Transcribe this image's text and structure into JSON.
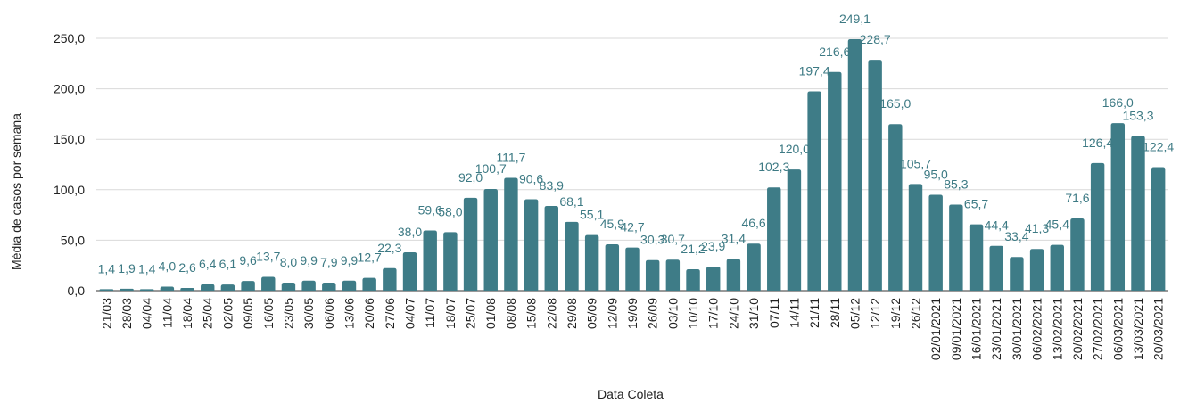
{
  "chart_data": {
    "type": "bar",
    "title": "",
    "xlabel": "Data Coleta",
    "ylabel": "Média de casos por semana",
    "ylim": [
      0,
      250
    ],
    "yticks": [
      "0,0",
      "50,0",
      "100,0",
      "150,0",
      "200,0",
      "250,0"
    ],
    "ytick_values": [
      0,
      50,
      100,
      150,
      200,
      250
    ],
    "grid": true,
    "legend": "none",
    "bar_color": "#3e7c87",
    "categories": [
      "21/03",
      "28/03",
      "04/04",
      "11/04",
      "18/04",
      "25/04",
      "02/05",
      "09/05",
      "16/05",
      "23/05",
      "30/05",
      "06/06",
      "13/06",
      "20/06",
      "27/06",
      "04/07",
      "11/07",
      "18/07",
      "25/07",
      "01/08",
      "08/08",
      "15/08",
      "22/08",
      "29/08",
      "05/09",
      "12/09",
      "19/09",
      "26/09",
      "03/10",
      "10/10",
      "17/10",
      "24/10",
      "31/10",
      "07/11",
      "14/11",
      "21/11",
      "28/11",
      "05/12",
      "12/12",
      "19/12",
      "26/12",
      "02/01/2021",
      "09/01/2021",
      "16/01/2021",
      "23/01/2021",
      "30/01/2021",
      "06/02/2021",
      "13/02/2021",
      "20/02/2021",
      "27/02/2021",
      "06/03/2021",
      "13/03/2021",
      "20/03/2021"
    ],
    "values": [
      1.4,
      1.9,
      1.4,
      4.0,
      2.6,
      6.4,
      6.1,
      9.6,
      13.7,
      8.0,
      9.9,
      7.9,
      9.9,
      12.7,
      22.3,
      38.0,
      59.6,
      58.0,
      92.0,
      100.7,
      111.7,
      90.6,
      83.9,
      68.1,
      55.1,
      45.9,
      42.7,
      30.3,
      30.7,
      21.2,
      23.9,
      31.4,
      46.6,
      102.3,
      120.0,
      197.4,
      216.6,
      249.1,
      228.7,
      165.0,
      105.7,
      95.0,
      85.3,
      65.7,
      44.4,
      33.4,
      41.3,
      45.4,
      71.6,
      126.4,
      166.0,
      153.3,
      122.4
    ],
    "value_labels": [
      "1,4",
      "1,9",
      "1,4",
      "4,0",
      "2,6",
      "6,4",
      "6,1",
      "9,6",
      "13,7",
      "8,0",
      "9,9",
      "7,9",
      "9,9",
      "12,7",
      "22,3",
      "38,0",
      "59,6",
      "58,0",
      "92,0",
      "100,7",
      "111,7",
      "90,6",
      "83,9",
      "68,1",
      "55,1",
      "45,9",
      "42,7",
      "30,3",
      "30,7",
      "21,2",
      "23,9",
      "31,4",
      "46,6",
      "102,3",
      "120,0",
      "197,4",
      "216,6",
      "249,1",
      "228,7",
      "165,0",
      "105,7",
      "95,0",
      "85,3",
      "65,7",
      "44,4",
      "33,4",
      "41,3",
      "45,4",
      "71,6",
      "126,4",
      "166,0",
      "153,3",
      "122,4"
    ]
  }
}
